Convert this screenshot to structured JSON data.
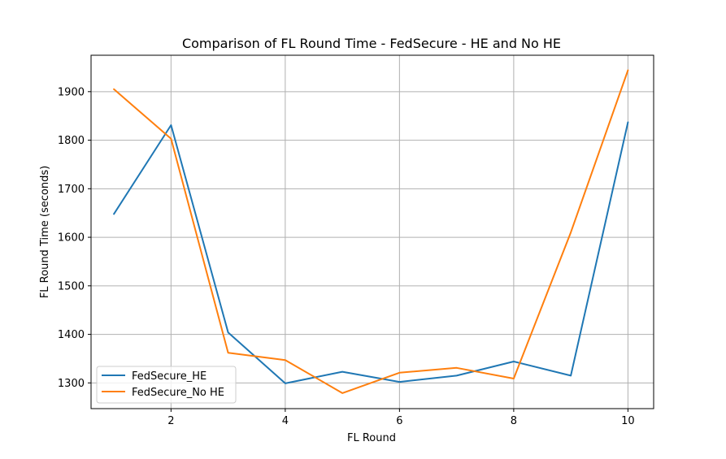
{
  "chart_data": {
    "type": "line",
    "title": "Comparison of FL Round Time - FedSecure - HE and No HE",
    "xlabel": "FL Round",
    "ylabel": "FL Round Time (seconds)",
    "xlim": [
      0.6,
      10.45
    ],
    "ylim": [
      1247,
      1975
    ],
    "xticks": [
      2,
      4,
      6,
      8,
      10
    ],
    "yticks": [
      1300,
      1400,
      1500,
      1600,
      1700,
      1800,
      1900
    ],
    "grid": true,
    "legend_position": "lower-left",
    "x": [
      1,
      2,
      3,
      4,
      5,
      6,
      7,
      8,
      9,
      10
    ],
    "series": [
      {
        "name": "FedSecure_HE",
        "color": "#1f77b4",
        "values": [
          1648,
          1831,
          1404,
          1299,
          1323,
          1302,
          1315,
          1344,
          1315,
          1837
        ]
      },
      {
        "name": "FedSecure_No HE",
        "color": "#ff7f0e",
        "values": [
          1905,
          1803,
          1362,
          1347,
          1279,
          1321,
          1331,
          1309,
          1610,
          1944
        ]
      }
    ]
  }
}
